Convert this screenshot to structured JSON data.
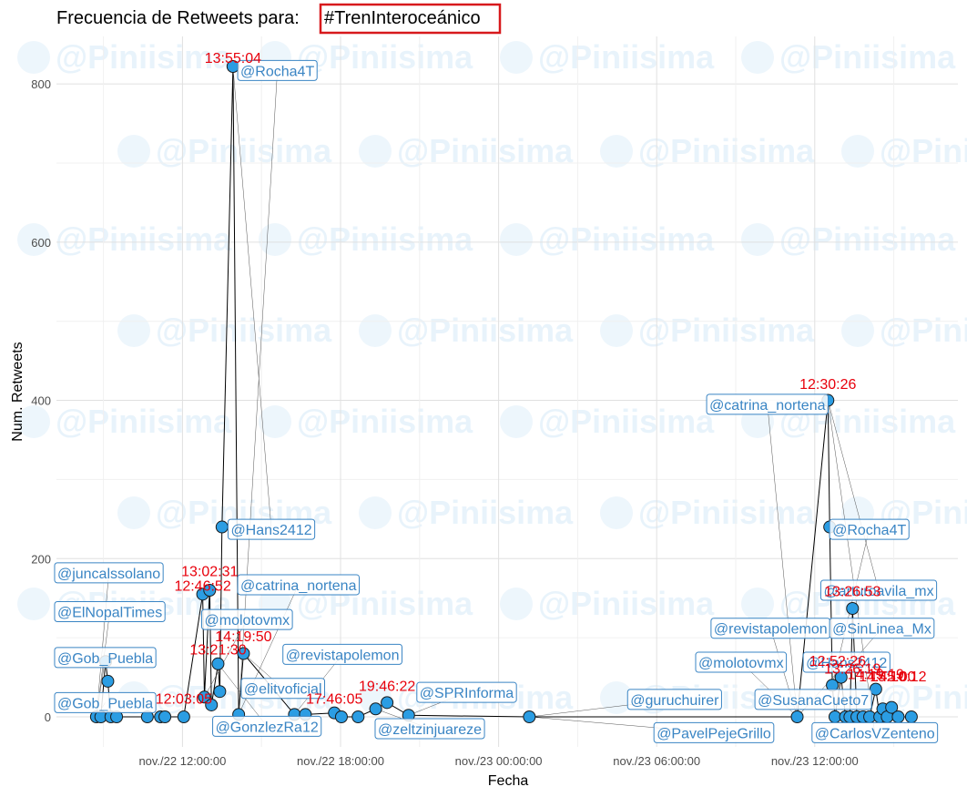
{
  "chart_data": {
    "type": "scatter",
    "title_prefix": "Frecuencia de Retweets para:",
    "title_highlight": "#TrenInteroceánico",
    "xlabel": "Fecha",
    "ylabel": "Num. Retweets",
    "x_ticks": [
      "nov./22 12:00:00",
      "nov./22 18:00:00",
      "nov./23 00:00:00",
      "nov./23 06:00:00",
      "nov./23 12:00:00"
    ],
    "x_range": [
      "2021-11-22 07:13",
      "2021-11-23 17:26"
    ],
    "y_ticks": [
      0,
      200,
      400,
      600,
      800
    ],
    "ylim": [
      -38,
      860
    ],
    "watermark": "@Piniisima",
    "colors": {
      "point": "#2b9de3",
      "point_stroke": "#1a1a1a",
      "user_label": "#3a85c4",
      "time_label": "#e8000b",
      "highlight_box": "#d7191c",
      "line": "#000000"
    },
    "points": [
      {
        "x": "2021-11-22 08:44",
        "y": 0
      },
      {
        "x": "2021-11-22 08:54",
        "y": 0
      },
      {
        "x": "2021-11-22 09:05",
        "y": 70
      },
      {
        "x": "2021-11-22 09:10",
        "y": 45
      },
      {
        "x": "2021-11-22 09:17",
        "y": 0
      },
      {
        "x": "2021-11-22 09:30",
        "y": 0
      },
      {
        "x": "2021-11-22 10:40",
        "y": 0
      },
      {
        "x": "2021-11-22 11:10",
        "y": 0
      },
      {
        "x": "2021-11-22 11:20",
        "y": 0
      },
      {
        "x": "2021-11-22 12:03",
        "y": 0
      },
      {
        "x": "2021-11-22 12:46",
        "y": 155
      },
      {
        "x": "2021-11-22 12:50",
        "y": 25
      },
      {
        "x": "2021-11-22 13:02",
        "y": 160
      },
      {
        "x": "2021-11-22 13:06",
        "y": 15
      },
      {
        "x": "2021-11-22 13:21",
        "y": 67
      },
      {
        "x": "2021-11-22 13:25",
        "y": 32
      },
      {
        "x": "2021-11-22 13:30",
        "y": 240
      },
      {
        "x": "2021-11-22 13:55",
        "y": 822
      },
      {
        "x": "2021-11-22 14:08",
        "y": 3
      },
      {
        "x": "2021-11-22 14:19",
        "y": 80
      },
      {
        "x": "2021-11-22 16:15",
        "y": 3
      },
      {
        "x": "2021-11-22 16:40",
        "y": 3
      },
      {
        "x": "2021-11-22 17:46",
        "y": 5
      },
      {
        "x": "2021-11-22 18:02",
        "y": 0
      },
      {
        "x": "2021-11-22 18:40",
        "y": 0
      },
      {
        "x": "2021-11-22 19:20",
        "y": 10
      },
      {
        "x": "2021-11-22 19:46",
        "y": 18
      },
      {
        "x": "2021-11-22 20:35",
        "y": 2
      },
      {
        "x": "2021-11-23 01:10",
        "y": 0
      },
      {
        "x": "2021-11-23 11:20",
        "y": 0
      },
      {
        "x": "2021-11-23 12:30",
        "y": 400
      },
      {
        "x": "2021-11-23 12:34",
        "y": 240
      },
      {
        "x": "2021-11-23 12:40",
        "y": 40
      },
      {
        "x": "2021-11-23 12:46",
        "y": 0
      },
      {
        "x": "2021-11-23 13:00",
        "y": 50
      },
      {
        "x": "2021-11-23 13:10",
        "y": 0
      },
      {
        "x": "2021-11-23 13:20",
        "y": 0
      },
      {
        "x": "2021-11-23 13:26",
        "y": 137
      },
      {
        "x": "2021-11-23 13:36",
        "y": 0
      },
      {
        "x": "2021-11-23 13:50",
        "y": 0
      },
      {
        "x": "2021-11-23 14:05",
        "y": 0
      },
      {
        "x": "2021-11-23 14:19",
        "y": 35
      },
      {
        "x": "2021-11-23 14:28",
        "y": 0
      },
      {
        "x": "2021-11-23 14:35",
        "y": 10
      },
      {
        "x": "2021-11-23 14:45",
        "y": 0
      },
      {
        "x": "2021-11-23 14:55",
        "y": 12
      },
      {
        "x": "2021-11-23 15:10",
        "y": 0
      },
      {
        "x": "2021-11-23 15:40",
        "y": 0
      }
    ],
    "time_labels": [
      {
        "text": "13:55:04",
        "x": "2021-11-22 13:55",
        "y": 822
      },
      {
        "text": "13:02:31",
        "x": "2021-11-22 13:02",
        "y": 173
      },
      {
        "text": "12:46:52",
        "x": "2021-11-22 12:46",
        "y": 155
      },
      {
        "text": "13:21:30",
        "x": "2021-11-22 13:21",
        "y": 74
      },
      {
        "text": "14:19:50",
        "x": "2021-11-22 14:19",
        "y": 91
      },
      {
        "text": "12:03:05",
        "x": "2021-11-22 12:03",
        "y": 12
      },
      {
        "text": "17:46:05",
        "x": "2021-11-22 17:46",
        "y": 12
      },
      {
        "text": "19:46:22",
        "x": "2021-11-22 19:46",
        "y": 28
      },
      {
        "text": "12:30:26",
        "x": "2021-11-23 12:30",
        "y": 410
      },
      {
        "text": "13:26:53",
        "x": "2021-11-23 13:26",
        "y": 148
      },
      {
        "text": "12:52:26",
        "x": "2021-11-23 12:52",
        "y": 60
      },
      {
        "text": "13:26:19",
        "x": "2021-11-23 13:26",
        "y": 50
      },
      {
        "text": "14:19:19",
        "x": "2021-11-23 14:19",
        "y": 43
      },
      {
        "text": "14:45:00",
        "x": "2021-11-23 14:45",
        "y": 40
      },
      {
        "text": "15:10:12",
        "x": "2021-11-23 15:10",
        "y": 40
      }
    ],
    "user_labels": [
      {
        "text": "@Rocha4T",
        "x": "2021-11-22 14:12",
        "y": 817
      },
      {
        "text": "@Hans2412",
        "x": "2021-11-22 13:50",
        "y": 237
      },
      {
        "text": "@juncalssolano",
        "x": "2021-11-22 07:15",
        "y": 182
      },
      {
        "text": "@catrina_nortena",
        "x": "2021-11-22 14:12",
        "y": 167
      },
      {
        "text": "@ElNopalTimes",
        "x": "2021-11-22 07:15",
        "y": 133
      },
      {
        "text": "@molotovmx",
        "x": "2021-11-22 12:50",
        "y": 123
      },
      {
        "text": "@Gob_Puebla",
        "x": "2021-11-22 07:15",
        "y": 75
      },
      {
        "text": "@revistapolemon",
        "x": "2021-11-22 15:55",
        "y": 79
      },
      {
        "text": "@elitvoficial",
        "x": "2021-11-22 14:20",
        "y": 36
      },
      {
        "text": "@Gob_Puebla",
        "x": "2021-11-22 07:15",
        "y": 18
      },
      {
        "text": "@GonzlezRa12",
        "x": "2021-11-22 13:15",
        "y": -12
      },
      {
        "text": "@SPRInforma",
        "x": "2021-11-22 21:00",
        "y": 31
      },
      {
        "text": "@zeltzinjuareze",
        "x": "2021-11-22 19:25",
        "y": -15
      },
      {
        "text": "@catrina_nortena",
        "x": "2021-11-23 08:00",
        "y": 395
      },
      {
        "text": "@Rocha4T",
        "x": "2021-11-23 12:40",
        "y": 237
      },
      {
        "text": "@arturoavila_mx",
        "x": "2021-11-23 12:20",
        "y": 160
      },
      {
        "text": "@revistapolemon",
        "x": "2021-11-23 08:10",
        "y": 112
      },
      {
        "text": "@SinLinea_Mx",
        "x": "2021-11-23 12:40",
        "y": 112
      },
      {
        "text": "@molotovmx",
        "x": "2021-11-23 07:35",
        "y": 69
      },
      {
        "text": "@Hans2412",
        "x": "2021-11-23 11:40",
        "y": 69
      },
      {
        "text": "@guruchuirer",
        "x": "2021-11-23 05:00",
        "y": 22
      },
      {
        "text": "@SusanaCueto7",
        "x": "2021-11-23 09:50",
        "y": 22
      },
      {
        "text": "@PavelPejeGrillo",
        "x": "2021-11-23 06:00",
        "y": -20
      },
      {
        "text": "@CarlosVZenteno",
        "x": "2021-11-23 12:00",
        "y": -20
      }
    ]
  }
}
